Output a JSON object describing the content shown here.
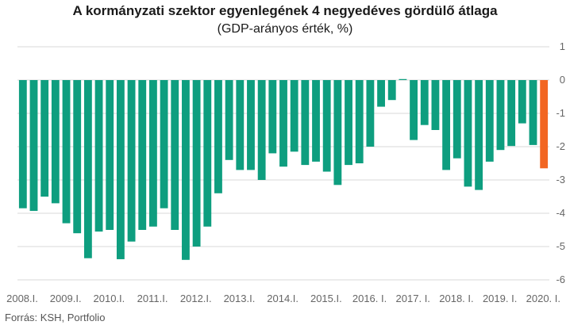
{
  "chart_data": {
    "type": "bar",
    "title": "A kormányzati szektor egyenlegének 4 negyedéves gördülő átlaga",
    "subtitle": "(GDP-arányos érték, %)",
    "source": "Forrás: KSH, Portfolio",
    "ylim": [
      -6,
      1
    ],
    "y_ticks": [
      1,
      0,
      -1,
      -2,
      -3,
      -4,
      -5,
      -6
    ],
    "grid": true,
    "colors": {
      "default": "#0e9e7f",
      "highlight": "#f26622",
      "grid": "#d9d9d9"
    },
    "x_tick_labels": [
      "2008.I.",
      "2009.I.",
      "2010.I.",
      "2011.I.",
      "2012.I.",
      "2013.I.",
      "2014.I.",
      "2015.I.",
      "2016. I.",
      "2017. I.",
      "2018. I.",
      "2019. I.",
      "2020. I."
    ],
    "categories": [
      "2008.I.",
      "2008.II.",
      "2008.III.",
      "2008.IV.",
      "2009.I.",
      "2009.II.",
      "2009.III.",
      "2009.IV.",
      "2010.I.",
      "2010.II.",
      "2010.III.",
      "2010.IV.",
      "2011.I.",
      "2011.II.",
      "2011.III.",
      "2011.IV.",
      "2012.I.",
      "2012.II.",
      "2012.III.",
      "2012.IV.",
      "2013.I.",
      "2013.II.",
      "2013.III.",
      "2013.IV.",
      "2014.I.",
      "2014.II.",
      "2014.III.",
      "2014.IV.",
      "2015.I.",
      "2015.II.",
      "2015.III.",
      "2015.IV.",
      "2016. I.",
      "2016. II.",
      "2016. III.",
      "2016. IV.",
      "2017. I.",
      "2017. II.",
      "2017. III.",
      "2017. IV.",
      "2018. I.",
      "2018. II.",
      "2018. III.",
      "2018. IV.",
      "2019. I.",
      "2019. II.",
      "2019. III.",
      "2019. IV.",
      "2020. I."
    ],
    "values": [
      -3.85,
      -3.93,
      -3.5,
      -3.7,
      -4.3,
      -4.6,
      -5.35,
      -4.55,
      -4.5,
      -5.38,
      -4.85,
      -4.5,
      -4.4,
      -3.85,
      -4.5,
      -5.4,
      -5.0,
      -4.4,
      -3.4,
      -2.4,
      -2.7,
      -2.7,
      -3.0,
      -2.2,
      -2.6,
      -2.15,
      -2.55,
      -2.45,
      -2.75,
      -3.15,
      -2.55,
      -2.5,
      -2.0,
      -0.8,
      -0.6,
      0.03,
      -1.8,
      -1.35,
      -1.5,
      -2.7,
      -2.35,
      -3.2,
      -3.3,
      -2.45,
      -2.1,
      -1.98,
      -1.3,
      -1.95,
      -2.65
    ],
    "highlight_index": 48
  }
}
